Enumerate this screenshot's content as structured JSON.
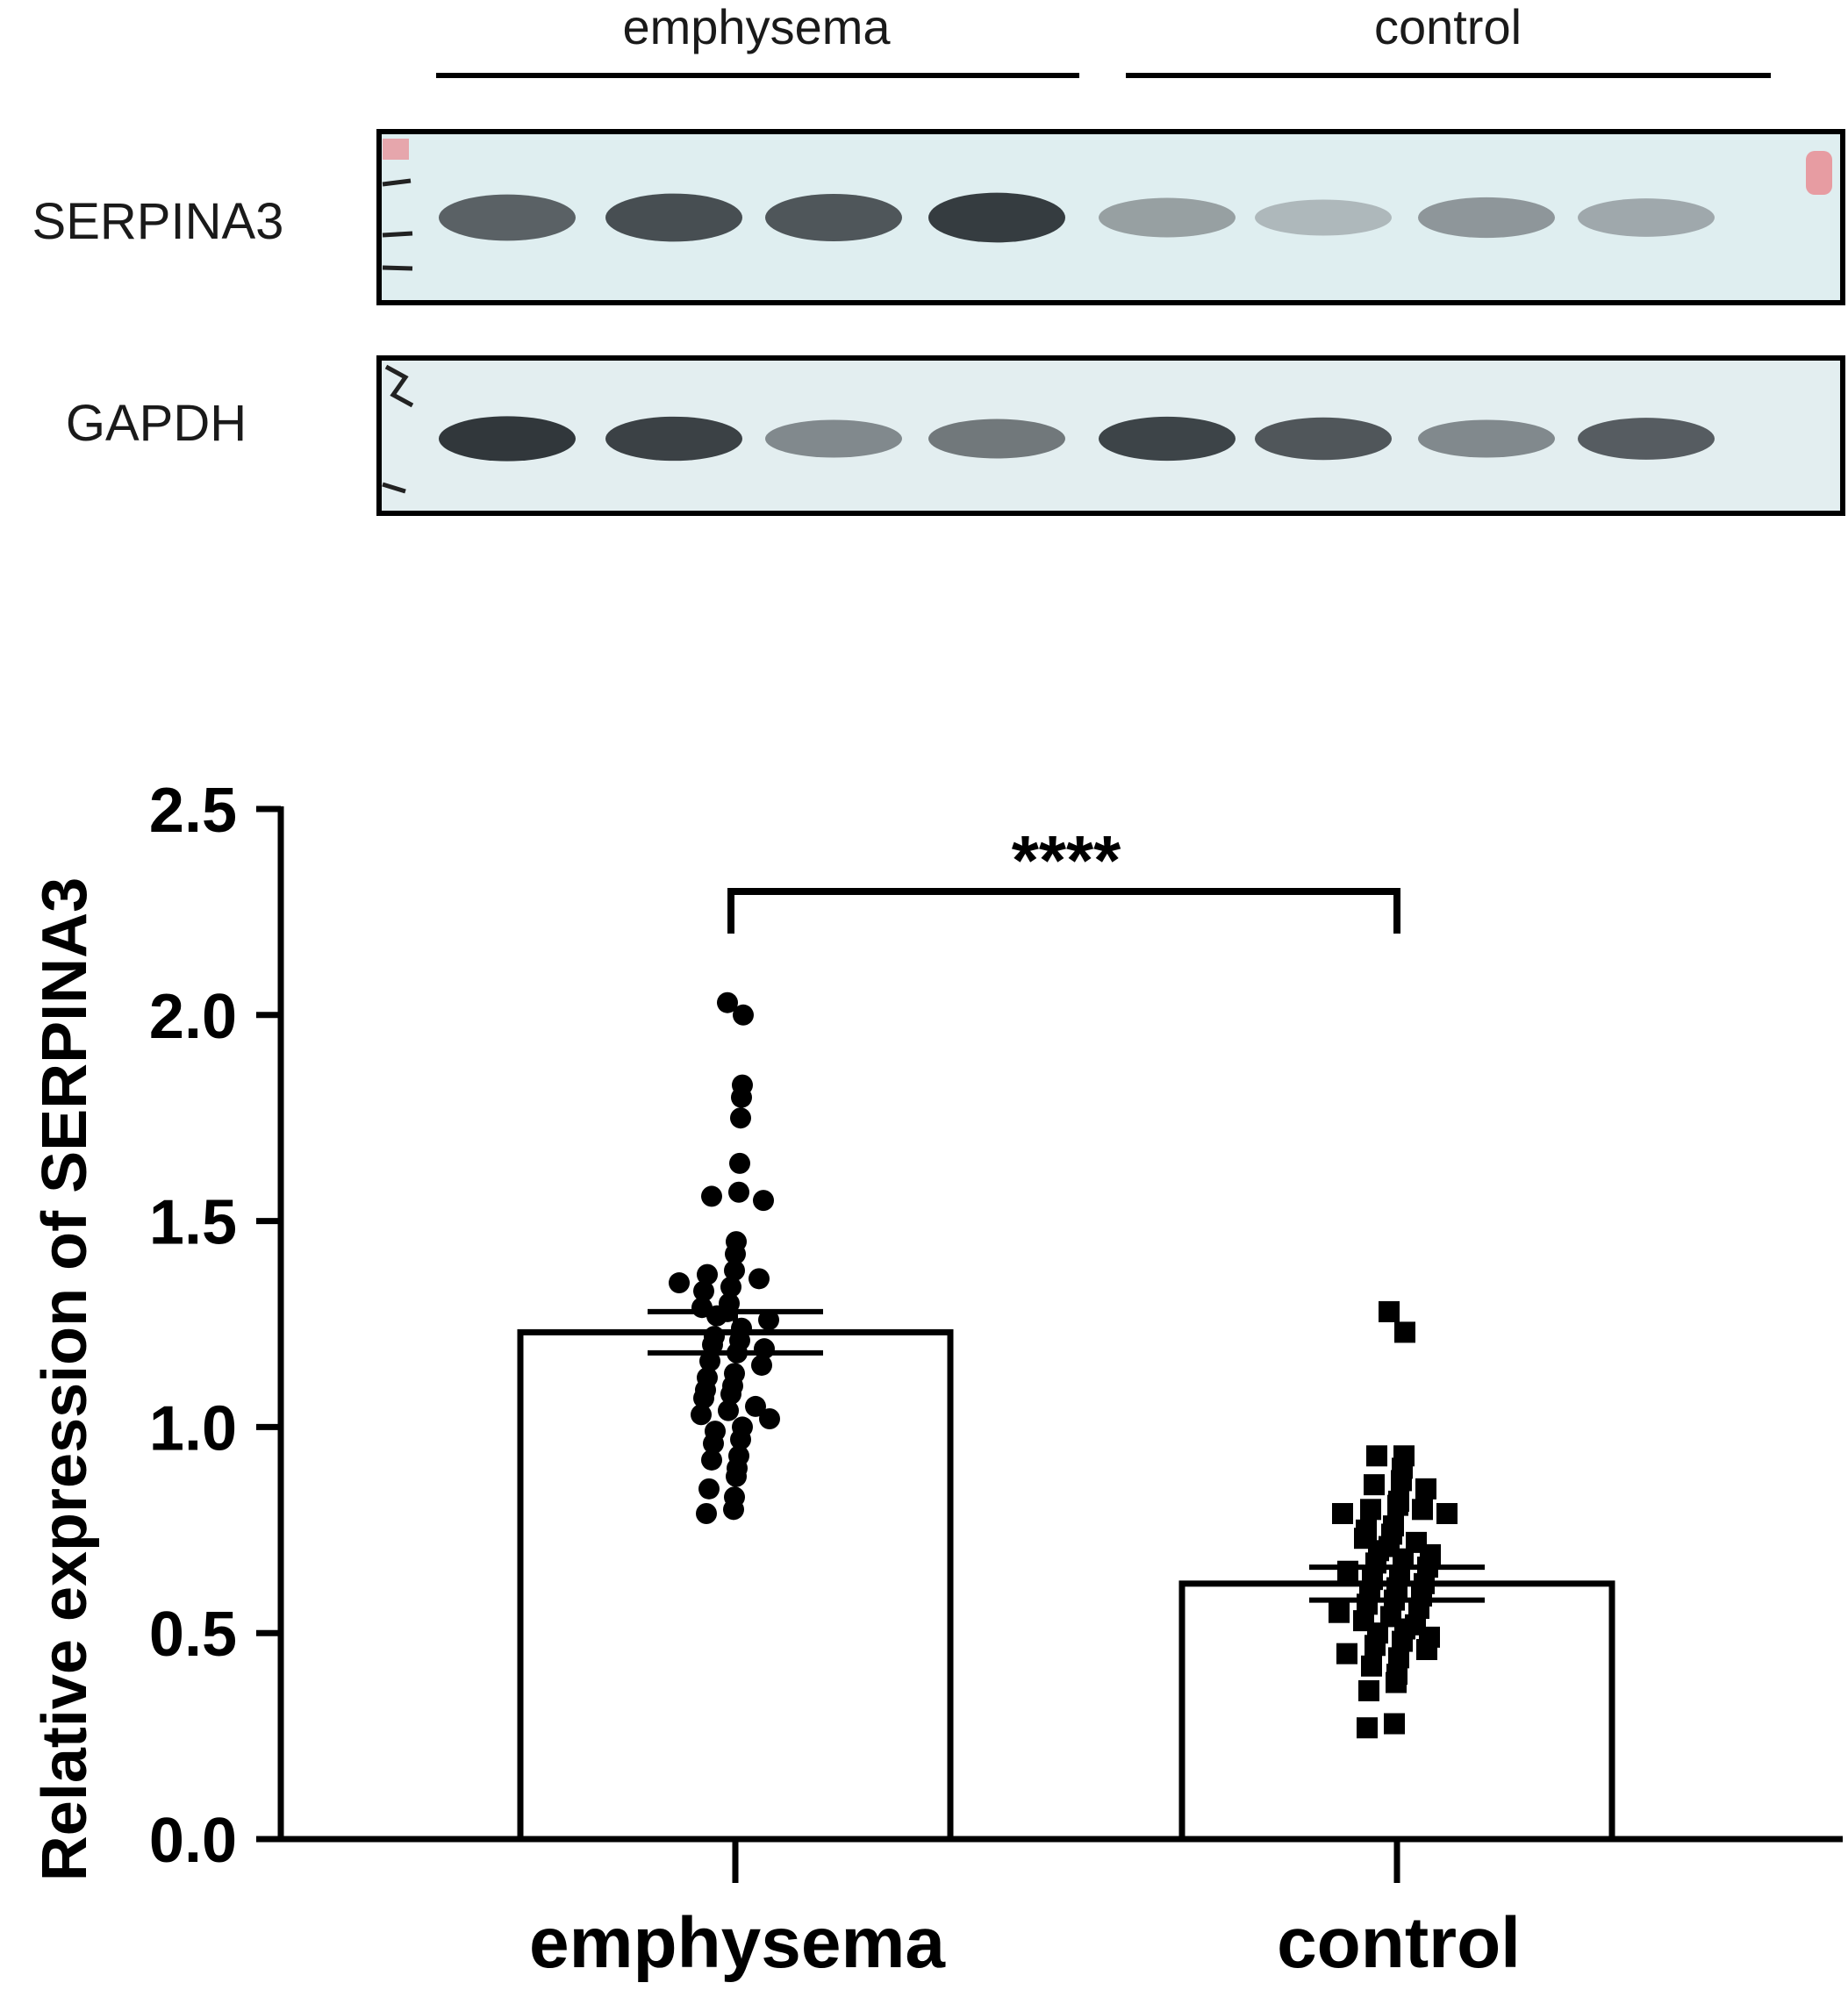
{
  "blot": {
    "group_labels": [
      "emphysema",
      "control"
    ],
    "row_labels": [
      "SERPINA3",
      "GAPDH"
    ],
    "colors": {
      "membrane": "#dfeef0",
      "border": "#000000",
      "marker": "#e8878f"
    },
    "band_intensity": {
      "SERPINA3": [
        0.8,
        0.88,
        0.85,
        0.95,
        0.5,
        0.35,
        0.55,
        0.45
      ],
      "GAPDH": [
        0.97,
        0.93,
        0.62,
        0.7,
        0.92,
        0.85,
        0.62,
        0.82
      ]
    }
  },
  "chart_data": {
    "type": "bar",
    "ylabel": "Relative expression of SERPINA3",
    "xlabel": "",
    "ylim": [
      0,
      2.5
    ],
    "yticks": [
      "0.0",
      "0.5",
      "1.0",
      "1.5",
      "2.0",
      "2.5"
    ],
    "categories": [
      "emphysema",
      "control"
    ],
    "values": [
      1.23,
      0.62
    ],
    "sem": [
      0.05,
      0.04
    ],
    "significance": "****",
    "points": {
      "emphysema": {
        "marker": "circle",
        "values": [
          2.03,
          2.0,
          1.83,
          1.8,
          1.75,
          1.64,
          1.57,
          1.56,
          1.55,
          1.45,
          1.42,
          1.38,
          1.37,
          1.36,
          1.35,
          1.34,
          1.33,
          1.3,
          1.29,
          1.28,
          1.27,
          1.26,
          1.24,
          1.22,
          1.21,
          1.2,
          1.19,
          1.18,
          1.16,
          1.15,
          1.13,
          1.12,
          1.1,
          1.09,
          1.08,
          1.07,
          1.05,
          1.04,
          1.03,
          1.02,
          1.0,
          0.99,
          0.97,
          0.96,
          0.93,
          0.92,
          0.9,
          0.88,
          0.85,
          0.83,
          0.8,
          0.79
        ]
      },
      "control": {
        "marker": "square",
        "values": [
          1.28,
          1.23,
          0.93,
          0.93,
          0.9,
          0.87,
          0.86,
          0.85,
          0.82,
          0.81,
          0.8,
          0.8,
          0.79,
          0.79,
          0.76,
          0.75,
          0.74,
          0.73,
          0.72,
          0.71,
          0.7,
          0.69,
          0.68,
          0.67,
          0.66,
          0.65,
          0.64,
          0.63,
          0.62,
          0.61,
          0.6,
          0.59,
          0.58,
          0.57,
          0.56,
          0.55,
          0.54,
          0.53,
          0.52,
          0.51,
          0.5,
          0.49,
          0.48,
          0.47,
          0.46,
          0.45,
          0.44,
          0.42,
          0.4,
          0.38,
          0.36,
          0.28,
          0.27
        ]
      }
    }
  }
}
